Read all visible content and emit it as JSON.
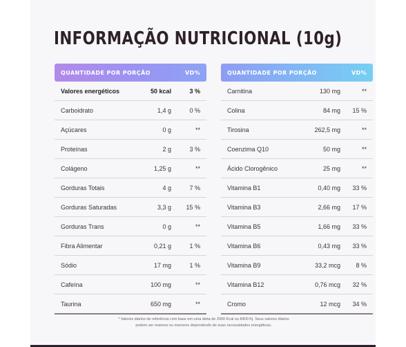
{
  "title": "INFORMAÇÃO NUTRICIONAL (10g)",
  "left_table": {
    "header": {
      "name": "QUANTIDADE POR PORÇÃO",
      "vd": "VD%"
    },
    "rows": [
      {
        "name": "Valores energéticos",
        "qty": "50 kcal",
        "vd": "3 %",
        "bold": true
      },
      {
        "name": "Carboidrato",
        "qty": "1,4 g",
        "vd": "0 %"
      },
      {
        "name": "Açúcares",
        "qty": "0 g",
        "vd": "**"
      },
      {
        "name": "Proteínas",
        "qty": "2 g",
        "vd": "3 %"
      },
      {
        "name": "Colágeno",
        "qty": "1,25 g",
        "vd": "**"
      },
      {
        "name": "Gorduras Totais",
        "qty": "4 g",
        "vd": "7 %"
      },
      {
        "name": "Gorduras Saturadas",
        "qty": "3,3 g",
        "vd": "15 %"
      },
      {
        "name": "Gorduras Trans",
        "qty": "0 g",
        "vd": "**"
      },
      {
        "name": "Fibra Alimentar",
        "qty": "0,21 g",
        "vd": "1 %"
      },
      {
        "name": "Sódio",
        "qty": "17 mg",
        "vd": "1 %"
      },
      {
        "name": "Cafeína",
        "qty": "100 mg",
        "vd": "**"
      },
      {
        "name": "Taurina",
        "qty": "650 mg",
        "vd": "**"
      }
    ]
  },
  "right_table": {
    "header": {
      "name": "QUANTIDADE POR PORÇÃO",
      "vd": "VD%"
    },
    "rows": [
      {
        "name": "Carnitina",
        "qty": "130 mg",
        "vd": "**"
      },
      {
        "name": "Colina",
        "qty": "84 mg",
        "vd": "15 %"
      },
      {
        "name": "Tirosina",
        "qty": "262,5 mg",
        "vd": "**"
      },
      {
        "name": "Coenzima Q10",
        "qty": "50 mg",
        "vd": "**"
      },
      {
        "name": "Ácido Clorogênico",
        "qty": "25 mg",
        "vd": "**"
      },
      {
        "name": "Vitamina B1",
        "qty": "0,40 mg",
        "vd": "33 %"
      },
      {
        "name": "Vitamina B3",
        "qty": "2,66 mg",
        "vd": "17 %"
      },
      {
        "name": "Vitamina B5",
        "qty": "1,66 mg",
        "vd": "33 %"
      },
      {
        "name": "Vitamina B6",
        "qty": "0,43 mg",
        "vd": "33 %"
      },
      {
        "name": "Vitamina B9",
        "qty": "33,2 mcg",
        "vd": "8 %"
      },
      {
        "name": "Vitamina B12",
        "qty": "0,76 mcg",
        "vd": "32 %"
      },
      {
        "name": "Cromo",
        "qty": "12 mcg",
        "vd": "34 %"
      }
    ]
  },
  "footnote": {
    "line1": "* Valores diários de referência com base em uma dieta de 2000 Kcal ou 8400 Kj. Seus valores diários",
    "line2": "podem ser maiores ou menores dependendo de suas necessidades energéticas."
  }
}
